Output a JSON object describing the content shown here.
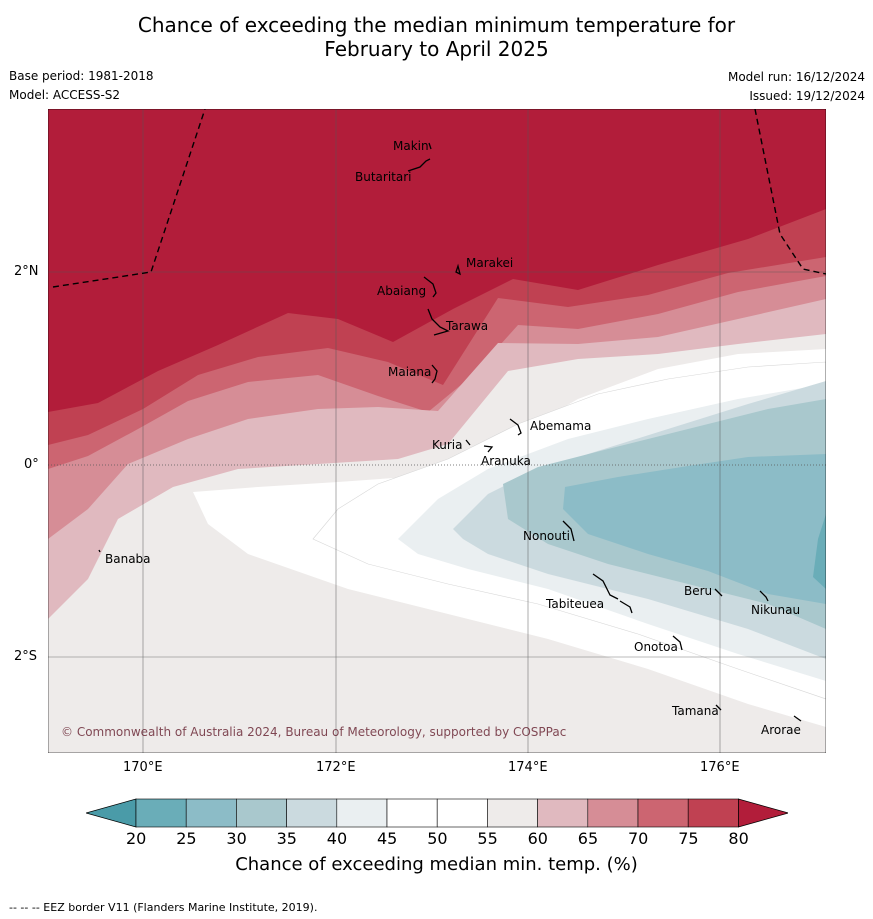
{
  "header": {
    "title_line1": "Chance of exceeding the median minimum temperature for",
    "title_line2": "February to April 2025",
    "base_period": "Base period: 1981-2018",
    "model": "Model: ACCESS-S2",
    "model_run": "Model run: 16/12/2024",
    "issued": "Issued: 19/12/2024"
  },
  "map": {
    "lat_labels": [
      "2°N",
      "0°",
      "2°S"
    ],
    "lon_labels": [
      "170°E",
      "172°E",
      "174°E",
      "176°E"
    ],
    "copyright": "© Commonwealth of Australia 2024, Bureau of Meteorology, supported by COSPPac",
    "places": [
      {
        "name": "Makin"
      },
      {
        "name": "Butaritari"
      },
      {
        "name": "Marakei"
      },
      {
        "name": "Abaiang"
      },
      {
        "name": "Tarawa"
      },
      {
        "name": "Maiana"
      },
      {
        "name": "Abemama"
      },
      {
        "name": "Kuria"
      },
      {
        "name": "Aranuka"
      },
      {
        "name": "Banaba"
      },
      {
        "name": "Nonouti"
      },
      {
        "name": "Beru"
      },
      {
        "name": "Tabiteuea"
      },
      {
        "name": "Nikunau"
      },
      {
        "name": "Onotoa"
      },
      {
        "name": "Tamana"
      },
      {
        "name": "Arorae"
      }
    ]
  },
  "colorbar": {
    "ticks": [
      "20",
      "25",
      "30",
      "35",
      "40",
      "45",
      "50",
      "55",
      "60",
      "65",
      "70",
      "75",
      "80"
    ],
    "label": "Chance of exceeding median min. temp. (%)",
    "colors": [
      "#4a9ba8",
      "#6aadb8",
      "#8cbcc7",
      "#a9c8cd",
      "#cbdadf",
      "#eaeff1",
      "#ffffff",
      "#ffffff",
      "#eeebea",
      "#e0b9bf",
      "#d68d96",
      "#cc6571",
      "#c04152",
      "#b21d3a"
    ]
  },
  "footnote": "--  --  -- EEZ border V11 (Flanders Marine Institute, 2019)."
}
